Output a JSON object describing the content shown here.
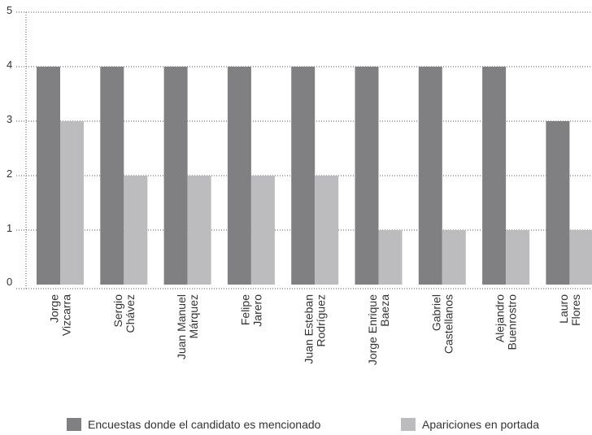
{
  "chart_data": {
    "type": "bar",
    "categories": [
      [
        "Jorge",
        "Vizcarra"
      ],
      [
        "Sergio",
        "Chávez"
      ],
      [
        "Juan Manuel",
        "Márquez"
      ],
      [
        "Felipe",
        "Jarero"
      ],
      [
        "Juan Esteban",
        "Rodríguez"
      ],
      [
        "Jorge Enrique",
        "Baeza"
      ],
      [
        "Gabriel",
        "Castellanos"
      ],
      [
        "Alejandro",
        "Buenrostro"
      ],
      [
        "Lauro",
        "Flores"
      ]
    ],
    "series": [
      {
        "name": "Encuestas donde el candidato es mencionado",
        "values": [
          4,
          4,
          4,
          4,
          4,
          4,
          4,
          4,
          3
        ],
        "color": "#808083"
      },
      {
        "name": "Apariciones en portada",
        "values": [
          3,
          2,
          2,
          2,
          2,
          1,
          1,
          1,
          1
        ],
        "color": "#bcbcbf"
      }
    ],
    "yticks": [
      "0",
      "1",
      "2",
      "3",
      "4",
      "5"
    ],
    "ylim": [
      0,
      5
    ],
    "grid": true,
    "legend": "bottom"
  }
}
